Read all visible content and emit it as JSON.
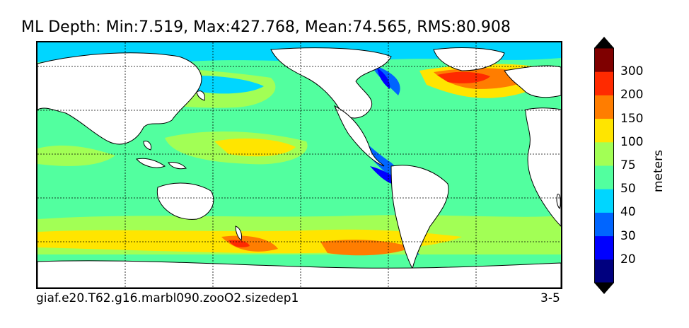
{
  "title": "ML Depth: Min:7.519, Max:427.768, Mean:74.565, RMS:80.908",
  "footer": {
    "case_name": "giaf.e20.T62.g16.marbl090.zooO2.sizedep1",
    "years": "3-5"
  },
  "colorbar": {
    "units": "meters",
    "ticks": [
      "20",
      "30",
      "40",
      "50",
      "75",
      "100",
      "150",
      "200",
      "300"
    ],
    "colors": [
      "#00007f",
      "#0000ff",
      "#0065ff",
      "#00d6ff",
      "#52ff9f",
      "#a2ff55",
      "#ffe500",
      "#ff7d00",
      "#ff2a00",
      "#7f0000"
    ],
    "under_color": "#000000",
    "over_color": "#000000"
  },
  "map": {
    "projection": "cylindrical",
    "land_color": "#ffffff",
    "gridlines": true
  },
  "stats": {
    "min": 7.519,
    "max": 427.768,
    "mean": 74.565,
    "rms": 80.908
  }
}
